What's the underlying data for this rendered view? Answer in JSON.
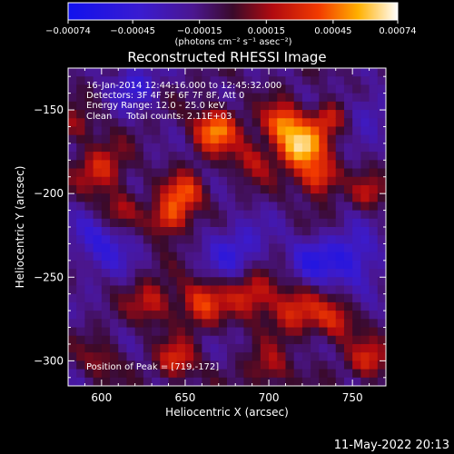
{
  "chart_data": {
    "type": "heatmap",
    "title": "Reconstructed RHESSI Image",
    "xlabel": "Heliocentric X (arcsec)",
    "ylabel": "Heliocentric Y (arcsec)",
    "xlim": [
      580,
      770
    ],
    "ylim": [
      -315,
      -125
    ],
    "x_ticks": [
      600,
      650,
      700,
      750
    ],
    "y_ticks": [
      -150,
      -200,
      -250,
      -300
    ],
    "x_tick_labels": [
      "600",
      "650",
      "700",
      "750"
    ],
    "y_tick_labels": [
      "−150",
      "−200",
      "−250",
      "−300"
    ],
    "colorbar": {
      "range": [
        -0.00074,
        0.00074
      ],
      "ticks": [
        -0.00074,
        -0.00045,
        -0.00015,
        0.00015,
        0.00045,
        0.00074
      ],
      "tick_labels": [
        "−0.00074",
        "−0.00045",
        "−0.00015",
        "0.00015",
        "0.00045",
        "0.00074"
      ],
      "units_label": "(photons cm⁻² s⁻¹ asec⁻²)",
      "colormap": "blue-purple-red-orange-yellow-white"
    },
    "annotations": [
      "16-Jan-2014 12:44:16.000 to 12:45:32.000",
      "Detectors: 3F 4F 5F 6F 7F 8F, Att 0",
      "Energy Range: 12.0 - 25.0 keV",
      "Clean     Total counts: 2.11E+03"
    ],
    "peak_label": "Position of Peak = [719,-172]",
    "peak_position": [
      719,
      -172
    ],
    "blobs": [
      {
        "x": 668,
        "y": -162,
        "amp": 0.00062,
        "sigma": 9
      },
      {
        "x": 708,
        "y": -158,
        "amp": 0.00058,
        "sigma": 8
      },
      {
        "x": 719,
        "y": -172,
        "amp": 0.00074,
        "sigma": 9
      },
      {
        "x": 730,
        "y": -190,
        "amp": 0.00055,
        "sigma": 8
      },
      {
        "x": 735,
        "y": -155,
        "amp": 0.00042,
        "sigma": 7
      },
      {
        "x": 690,
        "y": -180,
        "amp": 0.0003,
        "sigma": 9
      },
      {
        "x": 650,
        "y": -200,
        "amp": 0.0005,
        "sigma": 8
      },
      {
        "x": 640,
        "y": -215,
        "amp": 0.00052,
        "sigma": 8
      },
      {
        "x": 600,
        "y": -185,
        "amp": 0.0004,
        "sigma": 10
      },
      {
        "x": 610,
        "y": -210,
        "amp": 0.0003,
        "sigma": 8
      },
      {
        "x": 760,
        "y": -200,
        "amp": 0.0003,
        "sigma": 7
      },
      {
        "x": 690,
        "y": -260,
        "amp": 0.00045,
        "sigma": 10
      },
      {
        "x": 660,
        "y": -265,
        "amp": 0.00045,
        "sigma": 10
      },
      {
        "x": 630,
        "y": -265,
        "amp": 0.00035,
        "sigma": 9
      },
      {
        "x": 715,
        "y": -270,
        "amp": 0.0004,
        "sigma": 10
      },
      {
        "x": 740,
        "y": -275,
        "amp": 0.00038,
        "sigma": 9
      },
      {
        "x": 760,
        "y": -300,
        "amp": 0.0004,
        "sigma": 8
      },
      {
        "x": 645,
        "y": -300,
        "amp": 0.00042,
        "sigma": 8
      },
      {
        "x": 600,
        "y": -300,
        "amp": 0.00025,
        "sigma": 8
      },
      {
        "x": 585,
        "y": -160,
        "amp": 0.00025,
        "sigma": 7
      },
      {
        "x": 700,
        "y": -305,
        "amp": 0.0003,
        "sigma": 9
      },
      {
        "x": 620,
        "y": -135,
        "amp": -0.0003,
        "sigma": 10
      },
      {
        "x": 600,
        "y": -230,
        "amp": -0.00035,
        "sigma": 12
      },
      {
        "x": 680,
        "y": -235,
        "amp": -0.0003,
        "sigma": 14
      },
      {
        "x": 750,
        "y": -240,
        "amp": -0.0004,
        "sigma": 12
      },
      {
        "x": 760,
        "y": -150,
        "amp": -0.00025,
        "sigma": 9
      },
      {
        "x": 725,
        "y": -240,
        "amp": -0.0003,
        "sigma": 10
      }
    ]
  },
  "footer": {
    "timestamp": "11-May-2022 20:13"
  }
}
